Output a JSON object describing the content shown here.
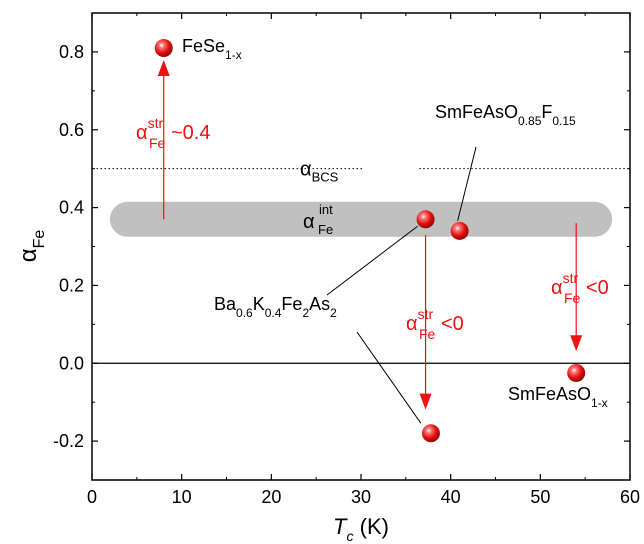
{
  "chart_data": {
    "type": "scatter",
    "xlabel": "T",
    "xlabel_sub": "c",
    "xlabel_unit": "(K)",
    "ylabel": "α",
    "ylabel_sub": "Fe",
    "xlim": [
      0,
      60
    ],
    "ylim": [
      -0.3,
      0.9
    ],
    "xticks": [
      0,
      10,
      20,
      30,
      40,
      50,
      60
    ],
    "yticks": [
      -0.2,
      0.0,
      0.2,
      0.4,
      0.6,
      0.8
    ],
    "ytick_labels": [
      "-0.2",
      "0.0",
      "0.2",
      "0.4",
      "0.6",
      "0.8"
    ],
    "grid": false,
    "colors": {
      "marker": "#e01010",
      "arrow": "#ee1111",
      "annotation": "#ee1111",
      "band": "#c0c0c0"
    },
    "points": [
      {
        "x": 8,
        "y": 0.81
      },
      {
        "x": 37.2,
        "y": 0.37
      },
      {
        "x": 41,
        "y": 0.34
      },
      {
        "x": 37.8,
        "y": -0.18
      },
      {
        "x": 54,
        "y": -0.025
      }
    ],
    "reference_lines": [
      {
        "y": 0.5,
        "style": "dotted",
        "label": "α",
        "label_sub": "BCS"
      },
      {
        "y": 0.0,
        "style": "solid"
      }
    ],
    "band": {
      "y_center": 0.37,
      "x_range": [
        2,
        58
      ],
      "label": "α",
      "label_sub": "Fe",
      "label_sup": "int"
    },
    "arrows": [
      {
        "x": 8,
        "y_from": 0.37,
        "y_to": 0.81
      },
      {
        "x": 37.2,
        "y_from": 0.33,
        "y_to": -0.15
      },
      {
        "x": 54,
        "y_from": 0.36,
        "y_to": 0.0
      }
    ],
    "compound_labels": [
      {
        "id": "fese",
        "parts": [
          [
            "FeSe",
            ""
          ],
          [
            "1-x",
            "sub"
          ]
        ]
      },
      {
        "id": "smf",
        "parts": [
          [
            "SmFeAsO",
            ""
          ],
          [
            "0.85",
            "sub"
          ],
          [
            "F",
            ""
          ],
          [
            "0.15",
            "sub"
          ]
        ]
      },
      {
        "id": "bak",
        "parts": [
          [
            "Ba",
            ""
          ],
          [
            "0.6",
            "sub"
          ],
          [
            "K",
            ""
          ],
          [
            "0.4",
            "sub"
          ],
          [
            "Fe",
            ""
          ],
          [
            "2",
            "sub"
          ],
          [
            "As",
            ""
          ],
          [
            "2",
            "sub"
          ]
        ]
      },
      {
        "id": "smo",
        "parts": [
          [
            "SmFeAsO",
            ""
          ],
          [
            "1-x",
            "sub"
          ]
        ]
      }
    ],
    "annotations": [
      {
        "id": "fese-str",
        "parts": [
          [
            "α",
            ""
          ],
          [
            "str",
            "sup"
          ],
          [
            "Fe",
            "sub"
          ],
          [
            "~0.4",
            ""
          ]
        ]
      },
      {
        "id": "bak-str",
        "parts": [
          [
            "α",
            ""
          ],
          [
            "str",
            "sup"
          ],
          [
            "Fe",
            "sub"
          ],
          [
            "<0",
            ""
          ]
        ]
      },
      {
        "id": "smo-str",
        "parts": [
          [
            "α",
            ""
          ],
          [
            "str",
            "sup"
          ],
          [
            "Fe",
            "sub"
          ],
          [
            "<0",
            ""
          ]
        ]
      }
    ]
  }
}
